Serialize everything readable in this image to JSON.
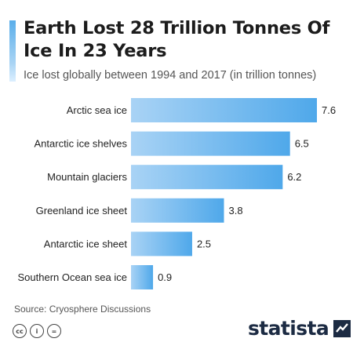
{
  "title": "Earth Lost 28 Trillion Tonnes Of Ice In 23 Years",
  "subtitle": "Ice lost globally between 1994 and 2017 (in trillion tonnes)",
  "source": "Source: Cryosphere Discussions",
  "brand": "statista",
  "license_icons": [
    "cc-icon",
    "person-icon",
    "equals-icon"
  ],
  "license_icon_glyphs": [
    "cc",
    "i",
    "="
  ],
  "colors": {
    "bar_start": "#a9d3f5",
    "bar_end": "#4fa8ea",
    "accent": "#5aaeea",
    "brand": "#1c2b43"
  },
  "chart_data": {
    "type": "bar",
    "orientation": "horizontal",
    "title": "Earth Lost 28 Trillion Tonnes Of Ice In 23 Years",
    "subtitle": "Ice lost globally between 1994 and 2017 (in trillion tonnes)",
    "categories": [
      "Arctic sea ice",
      "Antarctic ice shelves",
      "Mountain glaciers",
      "Greenland ice sheet",
      "Antarctic ice sheet",
      "Southern Ocean sea ice"
    ],
    "values": [
      7.6,
      6.5,
      6.2,
      3.8,
      2.5,
      0.9
    ],
    "value_labels": [
      "7.6",
      "6.5",
      "6.2",
      "3.8",
      "2.5",
      "0.9"
    ],
    "xlim": [
      0,
      7.6
    ],
    "grid": false,
    "legend": "none"
  }
}
